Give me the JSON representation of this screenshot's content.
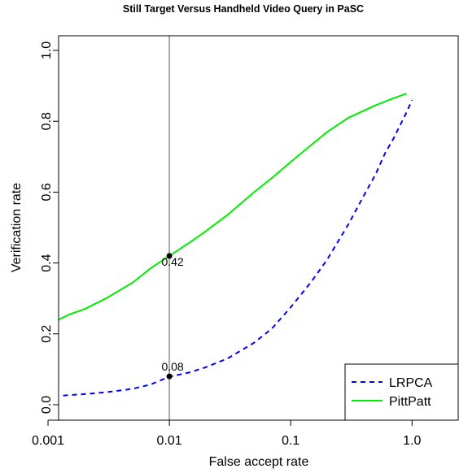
{
  "chart_data": {
    "type": "line",
    "title": "Still Target Versus Handheld Video Query in PaSC",
    "xlabel": "False accept rate",
    "ylabel": "Verification rate",
    "x_scale": "log",
    "xlim": [
      0.0008,
      1.0
    ],
    "ylim": [
      0.0,
      1.0
    ],
    "x_ticks": [
      0.001,
      0.01,
      0.1,
      1.0
    ],
    "x_tick_labels": [
      "0.001",
      "0.01",
      "0.1",
      "1.0"
    ],
    "y_ticks": [
      0.0,
      0.2,
      0.4,
      0.6,
      0.8,
      1.0
    ],
    "y_tick_labels": [
      "0.0",
      "0.2",
      "0.4",
      "0.6",
      "0.8",
      "1.0"
    ],
    "grid": false,
    "legend_position": "bottom-right",
    "reference_line": {
      "x": 0.01,
      "color": "#a9a9a9"
    },
    "series": [
      {
        "name": "LRPCA",
        "color": "#0000ff",
        "dash": true,
        "x": [
          0.0008,
          0.001,
          0.002,
          0.003,
          0.005,
          0.007,
          0.01,
          0.015,
          0.02,
          0.03,
          0.05,
          0.07,
          0.1,
          0.15,
          0.2,
          0.3,
          0.4,
          0.5,
          0.6,
          0.7,
          0.8,
          0.9,
          1.0
        ],
        "y": [
          0.021,
          0.023,
          0.03,
          0.035,
          0.045,
          0.057,
          0.079,
          0.092,
          0.106,
          0.13,
          0.175,
          0.215,
          0.275,
          0.35,
          0.41,
          0.51,
          0.59,
          0.65,
          0.71,
          0.75,
          0.79,
          0.825,
          0.86
        ]
      },
      {
        "name": "PittPatt",
        "color": "#00ee00",
        "dash": false,
        "x": [
          0.0008,
          0.001,
          0.0015,
          0.002,
          0.003,
          0.005,
          0.007,
          0.01,
          0.015,
          0.02,
          0.03,
          0.05,
          0.07,
          0.1,
          0.15,
          0.2,
          0.3,
          0.5,
          0.7,
          0.9
        ],
        "y": [
          0.205,
          0.225,
          0.255,
          0.27,
          0.3,
          0.345,
          0.385,
          0.42,
          0.46,
          0.49,
          0.535,
          0.6,
          0.64,
          0.685,
          0.735,
          0.77,
          0.81,
          0.845,
          0.865,
          0.878
        ]
      }
    ],
    "points": [
      {
        "x": 0.01,
        "y": 0.08,
        "label": "0.08",
        "label_pos": "above"
      },
      {
        "x": 0.01,
        "y": 0.42,
        "label": "0.42",
        "label_pos": "below"
      }
    ]
  }
}
